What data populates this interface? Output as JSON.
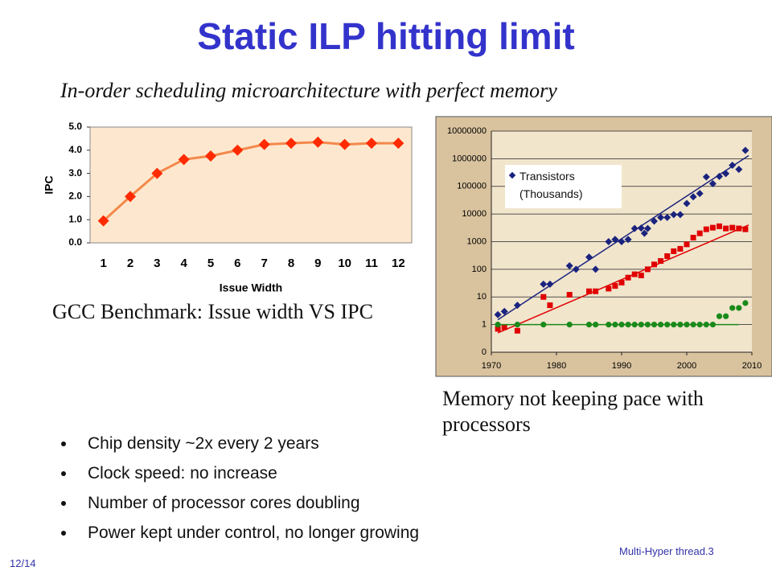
{
  "title": "Static ILP hitting limit",
  "subtitle": "In-order scheduling microarchitecture with perfect memory",
  "caption_left": "GCC Benchmark: Issue width VS IPC",
  "caption_right": "Memory not keeping pace with processors",
  "bullets": [
    "Chip density  ~2x every 2 years",
    "Clock speed: no increase",
    "Number of processor cores  doubling",
    "Power kept under control, no longer growing"
  ],
  "footer_left": "12/14",
  "footer_right": "Multi-Hyper thread.3",
  "chart_data": [
    {
      "type": "line",
      "xlabel": "Issue Width",
      "ylabel": "IPC",
      "categories": [
        "1",
        "2",
        "3",
        "4",
        "5",
        "6",
        "7",
        "8",
        "9",
        "10",
        "11",
        "12"
      ],
      "values": [
        0.95,
        2.0,
        3.0,
        3.6,
        3.75,
        4.0,
        4.25,
        4.3,
        4.35,
        4.25,
        4.3,
        4.3
      ],
      "color": "#ff2a00",
      "line_color": "#f4884a",
      "plot_background": "#fde8cf",
      "ylim": [
        0,
        5
      ],
      "yticks": [
        {
          "value": 0,
          "label": "0.0"
        },
        {
          "value": 1,
          "label": "1.0"
        },
        {
          "value": 2,
          "label": "2.0"
        },
        {
          "value": 3,
          "label": "3.0"
        },
        {
          "value": 4,
          "label": "4.0"
        },
        {
          "value": 5,
          "label": "5.0"
        }
      ]
    },
    {
      "type": "scatter",
      "log_y": true,
      "grid": true,
      "legend": "upper left",
      "plot_background": "#f1e5cc",
      "xlim": [
        1970,
        2010
      ],
      "xticks": [
        1970,
        1980,
        1990,
        2000,
        2010
      ],
      "ylim": [
        0.1,
        10000000
      ],
      "yticks": [
        {
          "value": 0.1,
          "label": "0"
        },
        1,
        10,
        100,
        1000,
        10000,
        100000,
        1000000,
        10000000
      ],
      "series": [
        {
          "name": "Transistors (Thousands)",
          "color": "#1a237e",
          "marker": "diamond",
          "x": [
            1971,
            1972,
            1974,
            1978,
            1979,
            1982,
            1983,
            1985,
            1986,
            1988,
            1989,
            1990,
            1991,
            1992,
            1993,
            1993.5,
            1994,
            1995,
            1996,
            1997,
            1998,
            1999,
            2000,
            2001,
            2002,
            2003,
            2004,
            2005,
            2006,
            2007,
            2008,
            2009
          ],
          "values": [
            2.3,
            3,
            5,
            29,
            29,
            134,
            100,
            275,
            100,
            1000,
            1200,
            1000,
            1200,
            3000,
            3100,
            2000,
            3000,
            5500,
            7500,
            7500,
            9500,
            9500,
            24000,
            42000,
            55000,
            220000,
            125000,
            230000,
            290000,
            580000,
            410000,
            2000000
          ],
          "trend": {
            "x": [
              1971,
              2009.5
            ],
            "values": [
              1.5,
              1300000
            ]
          }
        },
        {
          "color": "#e00000",
          "marker": "square",
          "x": [
            1971,
            1972,
            1974,
            1978,
            1979,
            1982,
            1985,
            1986,
            1988,
            1989,
            1990,
            1991,
            1992,
            1993,
            1994,
            1995,
            1996,
            1997,
            1998,
            1999,
            2000,
            2001,
            2002,
            2003,
            2004,
            2005,
            2006,
            2007,
            2008,
            2009
          ],
          "values": [
            0.7,
            0.8,
            0.6,
            10,
            5,
            12,
            16,
            16,
            20,
            25,
            33,
            50,
            66,
            60,
            100,
            150,
            200,
            300,
            450,
            550,
            800,
            1400,
            2000,
            2800,
            3200,
            3600,
            3000,
            3200,
            3000,
            2800
          ],
          "trend": {
            "x": [
              1971,
              2009.5
            ],
            "values": [
              0.5,
              4000
            ]
          }
        },
        {
          "color": "#1a8a1a",
          "marker": "circle",
          "x": [
            1971,
            1974,
            1978,
            1982,
            1985,
            1986,
            1988,
            1989,
            1990,
            1991,
            1992,
            1993,
            1994,
            1995,
            1996,
            1997,
            1998,
            1999,
            2000,
            2001,
            2002,
            2003,
            2004,
            2005,
            2006,
            2007,
            2008,
            2009
          ],
          "values": [
            1,
            1,
            1,
            1,
            1,
            1,
            1,
            1,
            1,
            1,
            1,
            1,
            1,
            1,
            1,
            1,
            1,
            1,
            1,
            1,
            1,
            1,
            1,
            2,
            2,
            4,
            4,
            6
          ],
          "trend": {
            "x": [
              1971,
              2008
            ],
            "values": [
              1,
              1
            ]
          }
        }
      ]
    }
  ]
}
